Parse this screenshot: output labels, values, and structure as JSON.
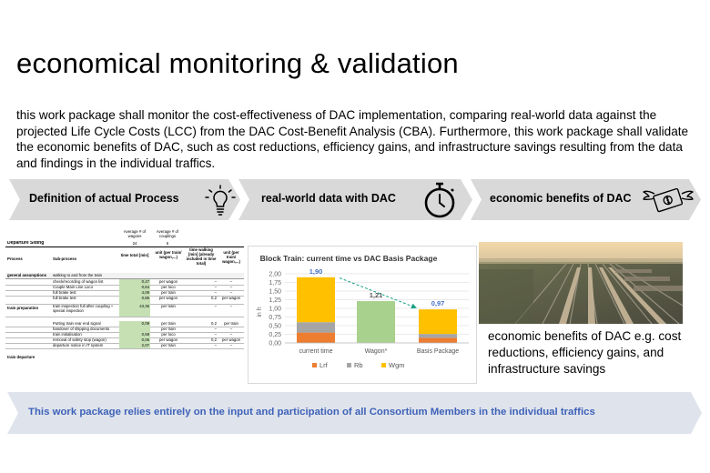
{
  "slide": {
    "title": "economical monitoring & validation",
    "description": "this work package shall monitor the cost-effectiveness of DAC implementation, comparing real-world data against the projected Life Cycle Costs (LCC) from the DAC Cost-Benefit Analysis (CBA). Furthermore, this work package shall validate the economic benefits of DAC, such as cost reductions, efficiency gains, and infrastructure savings resulting from the data and findings in the individual traffics."
  },
  "process_arrows": [
    {
      "label": "Definition of actual Process",
      "icon": "lightbulb-icon"
    },
    {
      "label": "real-world data with DAC",
      "icon": "stopwatch-icon"
    },
    {
      "label": "economic benefits of DAC",
      "icon": "flying-money-icon"
    }
  ],
  "table": {
    "top_headers": [
      {
        "text": "Average # of wagons",
        "value": "24"
      },
      {
        "text": "Average # of couplings",
        "value": "6"
      }
    ],
    "section": "Departure Siding",
    "headers": [
      "Process",
      "Sub-process",
      "time total [min]",
      "unit (per train/ wagon,...)",
      "time walking [min] (already included in time total)",
      "unit (per train/ wagon,...)"
    ],
    "groups": [
      "general assumptions",
      "train preparation",
      "train departure"
    ],
    "rows": [
      {
        "group": "general assumptions",
        "sub": "walking to and from the train",
        "time": "",
        "unit": "",
        "walk": "",
        "unit2": ""
      },
      {
        "group": "",
        "sub": "check/recording of wagon list",
        "time": "0,47",
        "unit": "per wagon",
        "walk": "–",
        "unit2": "–"
      },
      {
        "group": "",
        "sub": "Couple Main Line Loco",
        "time": "0,64",
        "unit": "per loco",
        "walk": "–",
        "unit2": "–"
      },
      {
        "group": "",
        "sub": "full brake test",
        "time": "4,09",
        "unit": "per train",
        "walk": "–",
        "unit2": "–"
      },
      {
        "group": "",
        "sub": "full brake test",
        "time": "0,85",
        "unit": "per wagon",
        "walk": "0,2",
        "unit2": "per wagon"
      },
      {
        "group": "",
        "sub": "train inspection full after coupling + special inspection",
        "time": "43,36",
        "unit": "per train",
        "walk": "–",
        "unit2": "–"
      },
      {
        "group": "",
        "sub": "Putting train rear end signal",
        "time": "0,09",
        "unit": "per train",
        "walk": "0,2",
        "unit2": "per train"
      },
      {
        "group": "",
        "sub": "handover of shipping documents",
        "time": "",
        "unit": "per train",
        "walk": "–",
        "unit2": "–"
      },
      {
        "group": "",
        "sub": "train initialisation",
        "time": "0,68",
        "unit": "per loco",
        "walk": "–",
        "unit2": "–"
      },
      {
        "group": "",
        "sub": "removal of safety stop (wagon)",
        "time": "0,06",
        "unit": "per wagon",
        "walk": "0,2",
        "unit2": "per wagon"
      },
      {
        "group": "",
        "sub": "departure notice in IT system",
        "time": "2,07",
        "unit": "per train",
        "walk": "–",
        "unit2": "–"
      }
    ]
  },
  "chart_data": {
    "type": "bar",
    "title": "Block Train: current time vs DAC Basis Package",
    "categories": [
      "current time",
      "Wagon*",
      "Basis Package"
    ],
    "ylabel": "in h",
    "ylim": [
      0,
      2
    ],
    "yticks": [
      "0,00",
      "0,25",
      "0,50",
      "0,75",
      "1,00",
      "1,25",
      "1,50",
      "1,75",
      "2,00"
    ],
    "totals": [
      "1,90",
      "1,21",
      "0,97"
    ],
    "series": [
      {
        "name": "Lrf",
        "color": "#ed7d31",
        "values": [
          0.3,
          0,
          0.15
        ]
      },
      {
        "name": "Rb",
        "color": "#a5a5a5",
        "values": [
          0.3,
          0,
          0.11
        ]
      },
      {
        "name": "Wgm",
        "color": "#ffc000",
        "values": [
          1.3,
          0,
          0.71
        ]
      }
    ],
    "special_bar": {
      "category": "Wagon*",
      "value": 1.21,
      "color": "#a9d18e"
    },
    "grid": true,
    "legend": "bottom"
  },
  "photo": {
    "description_icon": "rail-yard-aerial-photo"
  },
  "benefit_text": "economic benefits of DAC e.g. cost reductions, efficiency gains, and infrastructure savings",
  "footer": {
    "text": "This work package relies entirely on the input and participation of all Consortium Members in the individual traffics"
  },
  "colors": {
    "arrow_grey": "#d9d9d9",
    "footer_bg": "#dfe4ec",
    "footer_text": "#3f62b8",
    "cell_green": "#c6e0b4",
    "total_label": "#4472c4"
  }
}
